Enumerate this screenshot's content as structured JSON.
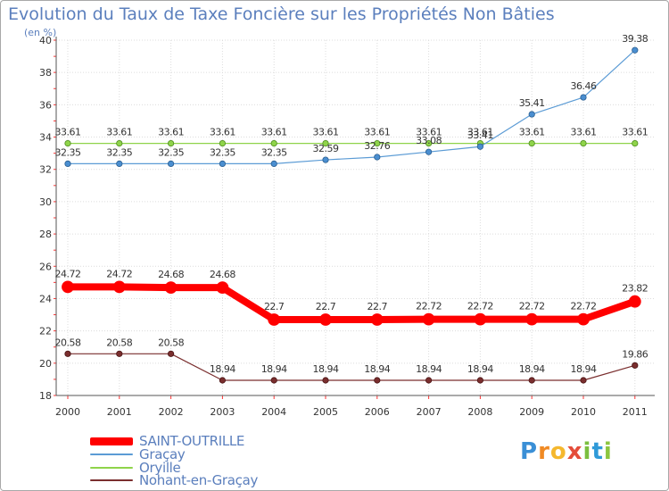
{
  "title": "Evolution du Taux de Taxe Foncière sur les Propriétés Non Bâties",
  "subtitle": "(en %)",
  "logo": [
    "P",
    "r",
    "o",
    "x",
    "i",
    "t",
    "i"
  ],
  "chart_data": {
    "type": "line",
    "title": "Evolution du Taux de Taxe Foncière sur les Propriétés Non Bâties",
    "ylabel": "(en %)",
    "xlabel": "",
    "ylim": [
      18,
      40
    ],
    "yticks": [
      18,
      20,
      22,
      24,
      26,
      28,
      30,
      32,
      34,
      36,
      38,
      40
    ],
    "categories": [
      "2000",
      "2001",
      "2002",
      "2003",
      "2004",
      "2005",
      "2006",
      "2007",
      "2008",
      "2009",
      "2010",
      "2011"
    ],
    "grid": true,
    "legend_position": "bottom-left",
    "series": [
      {
        "name": "SAINT-OUTRILLE",
        "color": "#ff0000",
        "values": [
          24.72,
          24.72,
          24.68,
          24.68,
          22.7,
          22.7,
          22.7,
          22.72,
          22.72,
          22.72,
          22.72,
          23.82
        ],
        "labels": [
          "24.72",
          "24.72",
          "24.68",
          "24.68",
          "22.7",
          "22.7",
          "22.7",
          "22.72",
          "22.72",
          "22.72",
          "22.72",
          "23.82"
        ]
      },
      {
        "name": "Graçay",
        "color": "#5b9bd5",
        "values": [
          32.35,
          32.35,
          32.35,
          32.35,
          32.35,
          32.59,
          32.76,
          33.08,
          33.41,
          35.41,
          36.46,
          39.38
        ],
        "labels": [
          "32.35",
          "32.35",
          "32.35",
          "32.35",
          "32.35",
          "32.59",
          "32.76",
          "33.08",
          "33.41",
          "35.41",
          "36.46",
          "39.38"
        ]
      },
      {
        "name": "Oryille",
        "color": "#8fd44a",
        "values": [
          33.61,
          33.61,
          33.61,
          33.61,
          33.61,
          33.61,
          33.61,
          33.61,
          33.61,
          33.61,
          33.61,
          33.61
        ],
        "labels": [
          "33.61",
          "33.61",
          "33.61",
          "33.61",
          "33.61",
          "33.61",
          "33.61",
          "33.61",
          "33.61",
          "33.61",
          "33.61",
          "33.61"
        ]
      },
      {
        "name": "Nohant-en-Graçay",
        "color": "#7a2e2e",
        "values": [
          20.58,
          20.58,
          20.58,
          18.94,
          18.94,
          18.94,
          18.94,
          18.94,
          18.94,
          18.94,
          18.94,
          19.86
        ],
        "labels": [
          "20.58",
          "20.58",
          "20.58",
          "18.94",
          "18.94",
          "18.94",
          "18.94",
          "18.94",
          "18.94",
          "18.94",
          "18.94",
          "19.86"
        ]
      }
    ]
  }
}
